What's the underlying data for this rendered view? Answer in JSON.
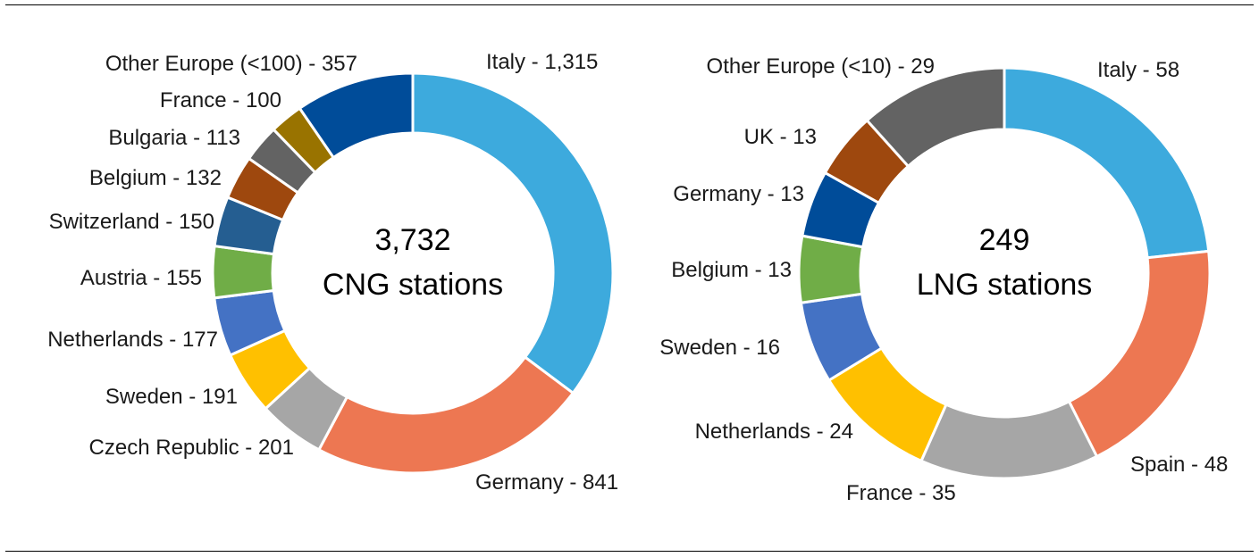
{
  "chart_data": [
    {
      "type": "pie",
      "variant": "donut",
      "center_value": "3,732",
      "center_label": "CNG stations",
      "total": 3732,
      "slices": [
        {
          "name": "Italy",
          "value": 1315,
          "label": "Italy - 1,315",
          "color": "#3DAADD"
        },
        {
          "name": "Germany",
          "value": 841,
          "label": "Germany - 841",
          "color": "#ED7752"
        },
        {
          "name": "Czech Republic",
          "value": 201,
          "label": "Czech Republic - 201",
          "color": "#A6A6A6"
        },
        {
          "name": "Sweden",
          "value": 191,
          "label": "Sweden - 191",
          "color": "#FFC000"
        },
        {
          "name": "Netherlands",
          "value": 177,
          "label": "Netherlands - 177",
          "color": "#4472C4"
        },
        {
          "name": "Austria",
          "value": 155,
          "label": "Austria - 155",
          "color": "#70AD47"
        },
        {
          "name": "Switzerland",
          "value": 150,
          "label": "Switzerland - 150",
          "color": "#255E91"
        },
        {
          "name": "Belgium",
          "value": 132,
          "label": "Belgium - 132",
          "color": "#9E480E"
        },
        {
          "name": "Bulgaria",
          "value": 113,
          "label": "Bulgaria - 113",
          "color": "#636363"
        },
        {
          "name": "France",
          "value": 100,
          "label": "France - 100",
          "color": "#997300"
        },
        {
          "name": "Other Europe (<100)",
          "value": 357,
          "label": "Other Europe (<100) - 357",
          "color": "#004C99"
        }
      ]
    },
    {
      "type": "pie",
      "variant": "donut",
      "center_value": "249",
      "center_label": "LNG stations",
      "total": 249,
      "slices": [
        {
          "name": "Italy",
          "value": 58,
          "label": "Italy - 58",
          "color": "#3DAADD"
        },
        {
          "name": "Spain",
          "value": 48,
          "label": "Spain - 48",
          "color": "#ED7752"
        },
        {
          "name": "France",
          "value": 35,
          "label": "France - 35",
          "color": "#A6A6A6"
        },
        {
          "name": "Netherlands",
          "value": 24,
          "label": "Netherlands - 24",
          "color": "#FFC000"
        },
        {
          "name": "Sweden",
          "value": 16,
          "label": "Sweden - 16",
          "color": "#4472C4"
        },
        {
          "name": "Belgium",
          "value": 13,
          "label": "Belgium - 13",
          "color": "#70AD47"
        },
        {
          "name": "Germany",
          "value": 13,
          "label": "Germany - 13",
          "color": "#004C99"
        },
        {
          "name": "UK",
          "value": 13,
          "label": "UK - 13",
          "color": "#9E480E"
        },
        {
          "name": "Other Europe (<10)",
          "value": 29,
          "label": "Other Europe (<10) - 29",
          "color": "#636363"
        }
      ]
    }
  ]
}
